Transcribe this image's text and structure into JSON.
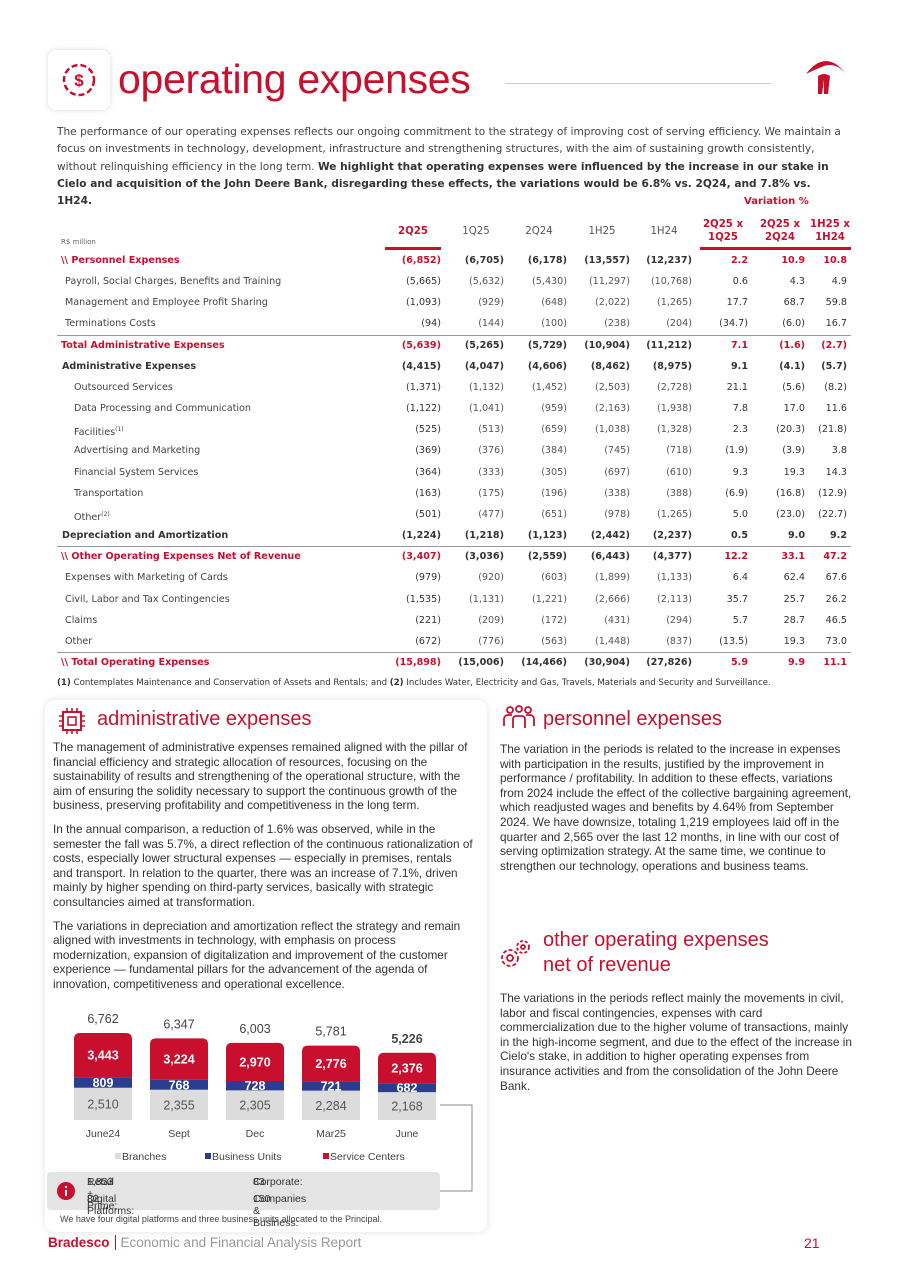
{
  "header": {
    "title": "operating expenses"
  },
  "intro": {
    "text": "The performance of our operating expenses reflects our ongoing commitment to the strategy of improving cost of serving efficiency. We maintain a focus on investments in technology, development, infrastructure and strengthening structures, with the aim of sustaining growth consistently, without relinquishing efficiency in the long term. ",
    "bold": "We highlight that operating expenses were influenced by the increase in our stake in Cielo and acquisition of the John Deere Bank, disregarding these effects, the variations would be 6.8% vs. 2Q24, and 7.8% vs. 1H24."
  },
  "table": {
    "unit": "R$ million",
    "variation_header": "Variation %",
    "columns": [
      "2Q25",
      "1Q25",
      "2Q24",
      "1H25",
      "1H24",
      "2Q25 x 1Q25",
      "2Q25 x 2Q24",
      "1H25 x 1H24"
    ],
    "rows": [
      {
        "label": "\\\\ Personnel Expenses",
        "values": [
          "(6,852)",
          "(6,705)",
          "(6,178)",
          "(13,557)",
          "(12,237)",
          "2.2",
          "10.9",
          "10.8"
        ]
      },
      {
        "label": "Payroll, Social Charges, Benefits and Training",
        "values": [
          "(5,665)",
          "(5,632)",
          "(5,430)",
          "(11,297)",
          "(10,768)",
          "0.6",
          "4.3",
          "4.9"
        ]
      },
      {
        "label": "Management and Employee Profit Sharing",
        "values": [
          "(1,093)",
          "(929)",
          "(648)",
          "(2,022)",
          "(1,265)",
          "17.7",
          "68.7",
          "59.8"
        ]
      },
      {
        "label": "Terminations Costs",
        "values": [
          "(94)",
          "(144)",
          "(100)",
          "(238)",
          "(204)",
          "(34.7)",
          "(6.0)",
          "16.7"
        ]
      },
      {
        "label": "Total Administrative Expenses",
        "values": [
          "(5,639)",
          "(5,265)",
          "(5,729)",
          "(10,904)",
          "(11,212)",
          "7.1",
          "(1.6)",
          "(2.7)"
        ]
      },
      {
        "label": "Administrative Expenses",
        "values": [
          "(4,415)",
          "(4,047)",
          "(4,606)",
          "(8,462)",
          "(8,975)",
          "9.1",
          "(4.1)",
          "(5.7)"
        ]
      },
      {
        "label": "Outsourced Services",
        "values": [
          "(1,371)",
          "(1,132)",
          "(1,452)",
          "(2,503)",
          "(2,728)",
          "21.1",
          "(5.6)",
          "(8.2)"
        ]
      },
      {
        "label": "Data Processing and Communication",
        "values": [
          "(1,122)",
          "(1,041)",
          "(959)",
          "(2,163)",
          "(1,938)",
          "7.8",
          "17.0",
          "11.6"
        ]
      },
      {
        "label": "Facilities",
        "sup": "(1)",
        "values": [
          "(525)",
          "(513)",
          "(659)",
          "(1,038)",
          "(1,328)",
          "2.3",
          "(20.3)",
          "(21.8)"
        ]
      },
      {
        "label": "Advertising and Marketing",
        "values": [
          "(369)",
          "(376)",
          "(384)",
          "(745)",
          "(718)",
          "(1.9)",
          "(3.9)",
          "3.8"
        ]
      },
      {
        "label": "Financial System Services",
        "values": [
          "(364)",
          "(333)",
          "(305)",
          "(697)",
          "(610)",
          "9.3",
          "19.3",
          "14.3"
        ]
      },
      {
        "label": "Transportation",
        "values": [
          "(163)",
          "(175)",
          "(196)",
          "(338)",
          "(388)",
          "(6.9)",
          "(16.8)",
          "(12.9)"
        ]
      },
      {
        "label": "Other",
        "sup": "(2)",
        "values": [
          "(501)",
          "(477)",
          "(651)",
          "(978)",
          "(1,265)",
          "5.0",
          "(23.0)",
          "(22.7)"
        ]
      },
      {
        "label": "Depreciation and Amortization",
        "values": [
          "(1,224)",
          "(1,218)",
          "(1,123)",
          "(2,442)",
          "(2,237)",
          "0.5",
          "9.0",
          "9.2"
        ]
      },
      {
        "label": "\\\\ Other Operating Expenses Net of Revenue",
        "values": [
          "(3,407)",
          "(3,036)",
          "(2,559)",
          "(6,443)",
          "(4,377)",
          "12.2",
          "33.1",
          "47.2"
        ]
      },
      {
        "label": "Expenses with Marketing of Cards",
        "values": [
          "(979)",
          "(920)",
          "(603)",
          "(1,899)",
          "(1,133)",
          "6.4",
          "62.4",
          "67.6"
        ]
      },
      {
        "label": "Civil, Labor and Tax Contingencies",
        "values": [
          "(1,535)",
          "(1,131)",
          "(1,221)",
          "(2,666)",
          "(2,113)",
          "35.7",
          "25.7",
          "26.2"
        ]
      },
      {
        "label": "Claims",
        "values": [
          "(221)",
          "(209)",
          "(172)",
          "(431)",
          "(294)",
          "5.7",
          "28.7",
          "46.5"
        ]
      },
      {
        "label": "Other",
        "values": [
          "(672)",
          "(776)",
          "(563)",
          "(1,448)",
          "(837)",
          "(13.5)",
          "19.3",
          "73.0"
        ]
      },
      {
        "label": "\\\\ Total Operating Expenses",
        "values": [
          "(15,898)",
          "(15,006)",
          "(14,466)",
          "(30,904)",
          "(27,826)",
          "5.9",
          "9.9",
          "11.1"
        ]
      }
    ],
    "notes": [
      {
        "mark": "(1)",
        "text": " Contemplates Maintenance and Conservation of Assets and Rentals; and "
      },
      {
        "mark": "(2)",
        "text": " Includes Water, Electricity and Gas, Travels, Materials and Security and Surveillance."
      }
    ]
  },
  "administrative": {
    "title": "administrative expenses",
    "paragraphs": [
      "The management of administrative expenses remained aligned with the pillar of financial efficiency and strategic allocation of resources, focusing on the sustainability of results and strengthening of the operational structure, with the aim of ensuring the solidity necessary to support the continuous growth of the business, preserving profitability and competitiveness in the long term.",
      "In the annual comparison, a reduction of 1.6% was observed, while in the semester the fall was 5.7%, a direct reflection of the continuous rationalization of costs, especially lower structural expenses — especially in premises, rentals and transport. In relation to the quarter, there was an increase of 7.1%, driven mainly by higher spending on third-party services, basically with strategic consultancies aimed at transformation.",
      "The variations in depreciation and amortization reflect the strategy and remain aligned with investments in technology, with emphasis on process modernization, expansion of digitalization and improvement of the customer experience — fundamental pillars for the advancement of the agenda of innovation, competitiveness and operational excellence."
    ]
  },
  "chart_data": {
    "type": "bar",
    "stacked": true,
    "categories": [
      "June24",
      "Sept",
      "Dec",
      "Mar25",
      "June"
    ],
    "series": [
      {
        "name": "Branches",
        "color": "#dcdcdc",
        "values": [
          2510,
          2355,
          2305,
          2284,
          2168
        ],
        "value_labels": [
          "2,510",
          "2,355",
          "2,305",
          "2,284",
          "2,168"
        ]
      },
      {
        "name": "Business Units",
        "color": "#2b3d8f",
        "values": [
          809,
          768,
          728,
          721,
          682
        ]
      },
      {
        "name": "Service Centers",
        "color": "#c8102e",
        "values": [
          3443,
          3224,
          2970,
          2776,
          2376
        ],
        "value_labels": [
          "3,443",
          "3,224",
          "2,970",
          "2,776",
          "2,376"
        ]
      }
    ],
    "totals": [
      6762,
      6347,
      6003,
      5781,
      5226
    ],
    "total_labels": [
      "6,762",
      "6,347",
      "6,003",
      "5,781",
      "5,226"
    ],
    "ylim": [
      0,
      7000
    ]
  },
  "info": {
    "items": [
      {
        "label": "Retail + Prime:",
        "value": "1,853"
      },
      {
        "label": "Corporate:",
        "value": "83"
      },
      {
        "label": "Digital Platforms:",
        "value": "82"
      },
      {
        "label": "Companies & Business:",
        "value": "150"
      }
    ],
    "note": "We have four digital platforms and three business units allocated to the Principal."
  },
  "personnel": {
    "title": "personnel expenses",
    "paragraph": "The variation in the periods is related to the increase in expenses with participation in the results, justified by the improvement in performance / profitability. In addition to these effects, variations from 2024 include the effect of the collective bargaining agreement, which readjusted wages and benefits by 4.64% from September 2024. We have downsize, totaling 1,219 employees laid off in the quarter and 2,565 over the last 12 months, in line with our cost of serving optimization strategy. At the same time, we continue to strengthen our technology, operations and business teams."
  },
  "other": {
    "title_lines": [
      "other operating expenses",
      "net of revenue"
    ],
    "paragraph": "The variations in the periods reflect mainly the movements in civil, labor and fiscal contingencies, expenses with card commercialization due to the higher volume of transactions, mainly in the high-income segment, and due to the effect of the increase in Cielo's stake, in addition to higher operating expenses from insurance activities and from the consolidation of the John Deere Bank."
  },
  "footer": {
    "brand": "Bradesco",
    "report": "Economic and Financial Analysis Report",
    "page": "21"
  }
}
